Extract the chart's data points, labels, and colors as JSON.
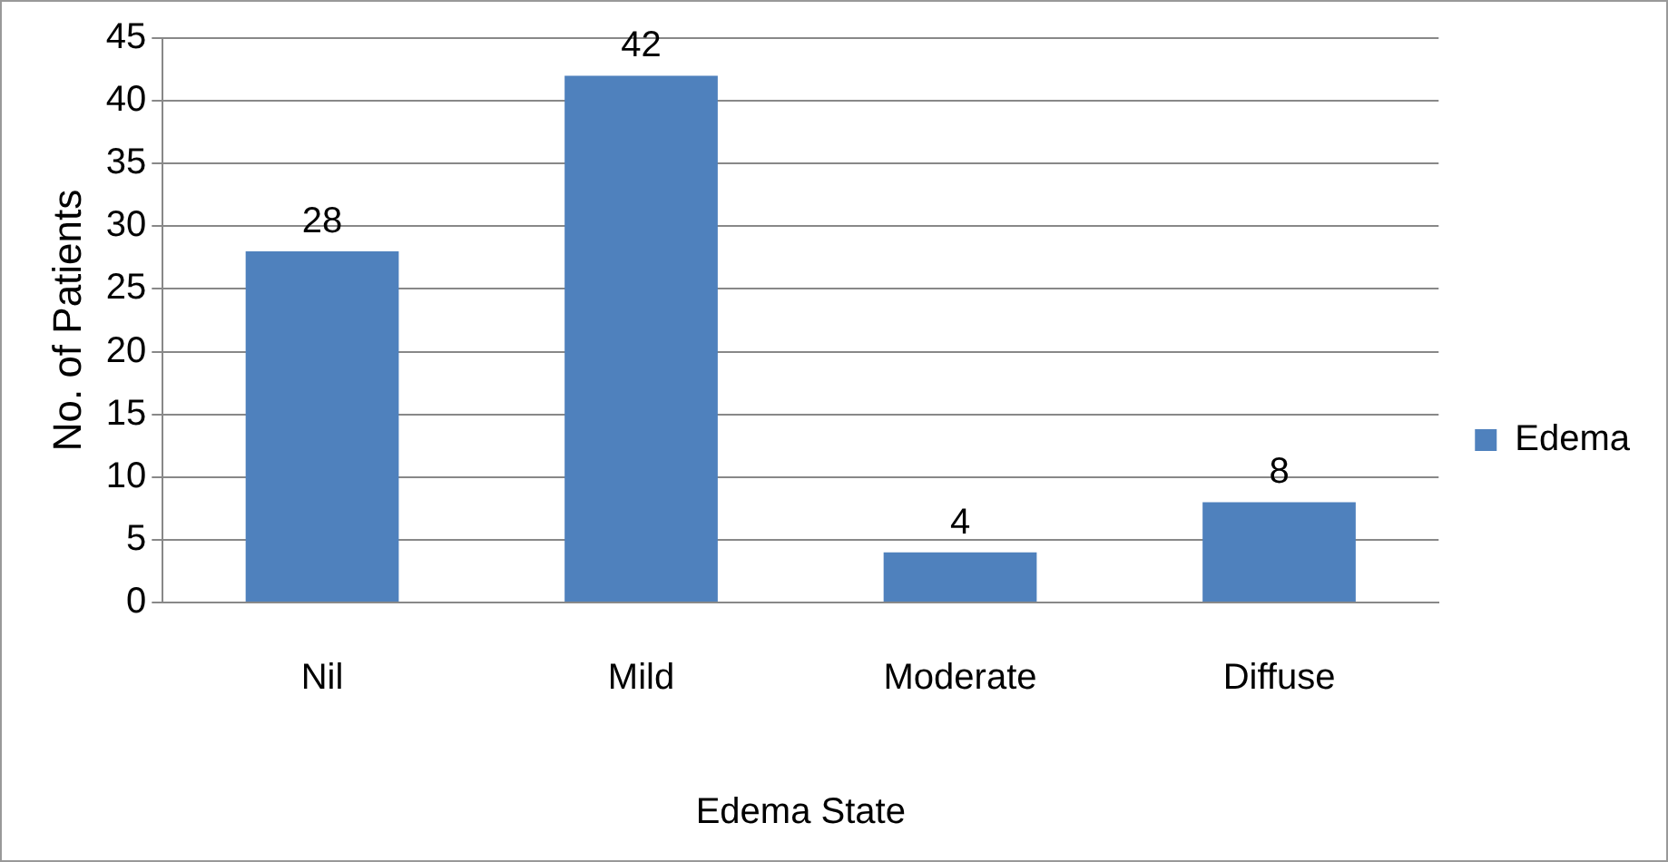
{
  "chart_data": {
    "type": "bar",
    "xlabel": "Edema State",
    "ylabel": "No. of Patients",
    "categories": [
      "Nil",
      "Mild",
      "Moderate",
      "Diffuse"
    ],
    "series": [
      {
        "name": "Edema",
        "color": "#4f81bd",
        "values": [
          28,
          42,
          4,
          8
        ]
      }
    ],
    "ylim": [
      0,
      45
    ],
    "yticks": [
      0,
      5,
      10,
      15,
      20,
      25,
      30,
      35,
      40,
      45
    ],
    "grid": "y",
    "legend": "right",
    "data_labels": true
  }
}
